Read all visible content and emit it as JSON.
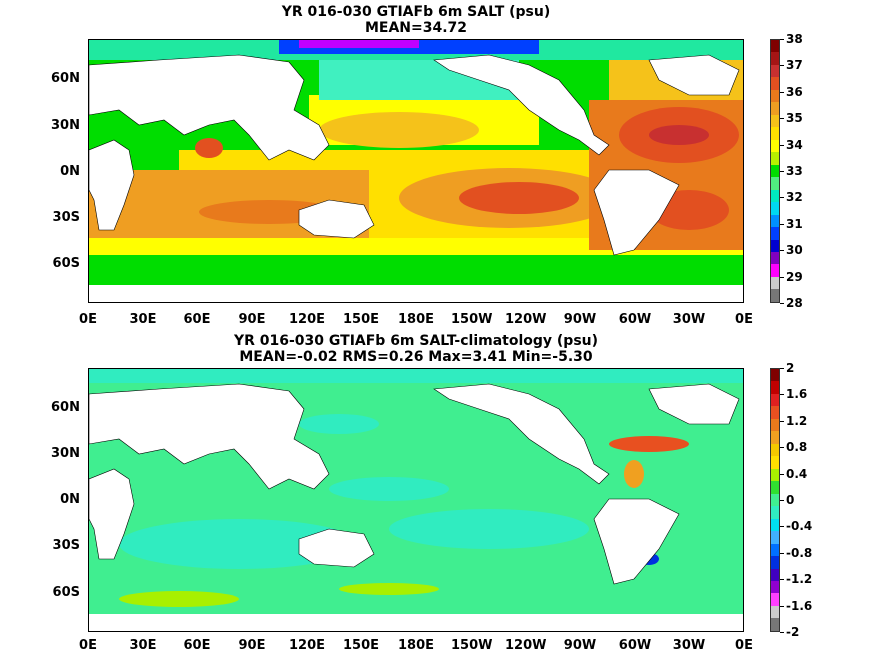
{
  "top": {
    "title_line1": "YR 016-030 GTIAFb 6m SALT (psu)",
    "title_line2": "MEAN=34.72",
    "colorbar_labels": [
      "38",
      "37",
      "36",
      "35",
      "34",
      "33",
      "32",
      "31",
      "30",
      "29",
      "28"
    ],
    "colorbar_colors": [
      "#800000",
      "#a51515",
      "#c83030",
      "#e25020",
      "#e87a1c",
      "#ef9e22",
      "#f5c21a",
      "#ffe000",
      "#ffff00",
      "#b8f000",
      "#00dd00",
      "#50ee80",
      "#00e8c0",
      "#00d8f0",
      "#0090ff",
      "#0040ff",
      "#0000d0",
      "#8000c0",
      "#ff00ff",
      "#cccccc",
      "#777777"
    ]
  },
  "bottom": {
    "title_line1": "YR 016-030 GTIAFb 6m SALT-climatology (psu)",
    "title_line2": "MEAN=-0.02   RMS=0.26   Max=3.41   Min=-5.30",
    "colorbar_labels": [
      "2",
      "1.6",
      "1.2",
      "0.8",
      "0.4",
      "0",
      "-0.4",
      "-0.8",
      "-1.2",
      "-1.6",
      "-2"
    ],
    "colorbar_colors": [
      "#800000",
      "#c00000",
      "#e02020",
      "#e85020",
      "#e87a1c",
      "#f0a020",
      "#f5c800",
      "#ffe000",
      "#a8f000",
      "#30e030",
      "#40ee90",
      "#30ecc0",
      "#00e0f0",
      "#40b0ff",
      "#0070ff",
      "#0030e0",
      "#4000c0",
      "#9000d0",
      "#ff40ff",
      "#cccccc",
      "#777777"
    ]
  },
  "y_labels": [
    "60N",
    "30N",
    "0N",
    "30S",
    "60S"
  ],
  "x_labels": [
    "0E",
    "30E",
    "60E",
    "90E",
    "120E",
    "150E",
    "180E",
    "150W",
    "120W",
    "90W",
    "60W",
    "30W",
    "0E"
  ]
}
